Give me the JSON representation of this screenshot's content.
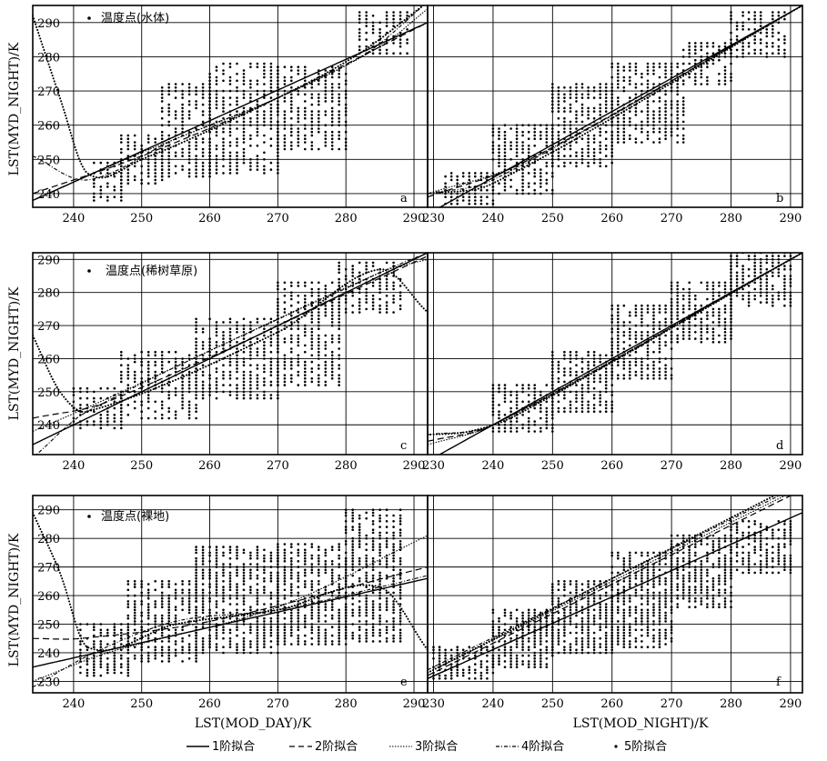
{
  "chart_data": [
    {
      "id": "a",
      "type": "scatter",
      "xlim": [
        234,
        292
      ],
      "ylim": [
        236,
        295
      ],
      "xticks": [
        240,
        250,
        260,
        270,
        280,
        290
      ],
      "yticks": [
        240,
        250,
        260,
        270,
        280,
        290
      ],
      "ylabel": "LST(MYD_NIGHT)/K",
      "point_label": "温度点(水体)",
      "bands": [
        {
          "x": [
            243,
            247
          ],
          "lo": 238,
          "hi": 249
        },
        {
          "x": [
            247,
            253
          ],
          "lo": 243,
          "hi": 257
        },
        {
          "x": [
            253,
            260
          ],
          "lo": 245,
          "hi": 272
        },
        {
          "x": [
            260,
            270
          ],
          "lo": 246,
          "hi": 278
        },
        {
          "x": [
            270,
            280
          ],
          "lo": 253,
          "hi": 277
        },
        {
          "x": [
            282,
            289
          ],
          "lo": 281,
          "hi": 293
        }
      ],
      "fits": {
        "fit1": [
          [
            234,
            238
          ],
          [
            292,
            290
          ]
        ],
        "fit2": [
          [
            234,
            240
          ],
          [
            250,
            251
          ],
          [
            270,
            268
          ],
          [
            292,
            290
          ]
        ],
        "fit3": [
          [
            234,
            238
          ],
          [
            250,
            252
          ],
          [
            270,
            268
          ],
          [
            285,
            283
          ],
          [
            292,
            294
          ]
        ],
        "fit4": [
          [
            234,
            251
          ],
          [
            242,
            244
          ],
          [
            255,
            256
          ],
          [
            270,
            268
          ],
          [
            283,
            281
          ],
          [
            292,
            296
          ]
        ],
        "fit5": [
          [
            234,
            292
          ],
          [
            238,
            268
          ],
          [
            242,
            246
          ],
          [
            250,
            250
          ],
          [
            270,
            268
          ],
          [
            282,
            281
          ],
          [
            292,
            296
          ]
        ]
      }
    },
    {
      "id": "b",
      "type": "scatter",
      "xlim": [
        229,
        292
      ],
      "ylim": [
        236,
        295
      ],
      "xticks": [
        230,
        240,
        250,
        260,
        270,
        280,
        290
      ],
      "yticks": [
        240,
        250,
        260,
        270,
        280,
        290
      ],
      "bands": [
        {
          "x": [
            232,
            240
          ],
          "lo": 237,
          "hi": 246
        },
        {
          "x": [
            240,
            250
          ],
          "lo": 240,
          "hi": 260
        },
        {
          "x": [
            250,
            260
          ],
          "lo": 248,
          "hi": 272
        },
        {
          "x": [
            260,
            272
          ],
          "lo": 255,
          "hi": 278
        },
        {
          "x": [
            272,
            280
          ],
          "lo": 272,
          "hi": 284
        },
        {
          "x": [
            280,
            289
          ],
          "lo": 280,
          "hi": 293
        }
      ],
      "fits": {
        "fit1": [
          [
            229,
            234
          ],
          [
            292,
            295
          ]
        ],
        "fit2": [
          [
            229,
            239
          ],
          [
            245,
            249
          ],
          [
            292,
            295
          ]
        ],
        "fit3": [
          [
            229,
            240
          ],
          [
            245,
            249
          ],
          [
            292,
            295
          ]
        ],
        "fit4": [
          [
            229,
            240
          ],
          [
            240,
            244
          ],
          [
            292,
            295
          ]
        ],
        "fit5": [
          [
            229,
            240
          ],
          [
            240,
            243
          ],
          [
            292,
            295
          ]
        ]
      }
    },
    {
      "id": "c",
      "type": "scatter",
      "xlim": [
        234,
        292
      ],
      "ylim": [
        231,
        292
      ],
      "xticks": [
        240,
        250,
        260,
        270,
        280,
        290
      ],
      "yticks": [
        240,
        250,
        260,
        270,
        280,
        290
      ],
      "ylabel": "LST(MYD_NIGHT)/K",
      "point_label": "温度点(稀树草原)",
      "bands": [
        {
          "x": [
            240,
            247
          ],
          "lo": 239,
          "hi": 251
        },
        {
          "x": [
            247,
            258
          ],
          "lo": 242,
          "hi": 262
        },
        {
          "x": [
            258,
            270
          ],
          "lo": 248,
          "hi": 272
        },
        {
          "x": [
            270,
            279
          ],
          "lo": 252,
          "hi": 283
        },
        {
          "x": [
            279,
            288
          ],
          "lo": 274,
          "hi": 289
        }
      ],
      "fits": {
        "fit1": [
          [
            234,
            234
          ],
          [
            292,
            292
          ]
        ],
        "fit2": [
          [
            234,
            242
          ],
          [
            245,
            247
          ],
          [
            292,
            291
          ]
        ],
        "fit3": [
          [
            234,
            238
          ],
          [
            245,
            248
          ],
          [
            285,
            286
          ],
          [
            292,
            290
          ]
        ],
        "fit4": [
          [
            234,
            230
          ],
          [
            242,
            244
          ],
          [
            285,
            286
          ],
          [
            292,
            292
          ]
        ],
        "fit5": [
          [
            234,
            267
          ],
          [
            238,
            250
          ],
          [
            242,
            244
          ],
          [
            270,
            268
          ],
          [
            285,
            287
          ],
          [
            292,
            274
          ]
        ]
      }
    },
    {
      "id": "d",
      "type": "scatter",
      "xlim": [
        229,
        292
      ],
      "ylim": [
        231,
        292
      ],
      "xticks": [
        230,
        240,
        250,
        260,
        270,
        280,
        290
      ],
      "yticks": [
        240,
        250,
        260,
        270,
        280,
        290
      ],
      "bands": [
        {
          "x": [
            240,
            250
          ],
          "lo": 238,
          "hi": 252
        },
        {
          "x": [
            250,
            260
          ],
          "lo": 244,
          "hi": 262
        },
        {
          "x": [
            260,
            270
          ],
          "lo": 254,
          "hi": 276
        },
        {
          "x": [
            270,
            280
          ],
          "lo": 265,
          "hi": 283
        },
        {
          "x": [
            280,
            290
          ],
          "lo": 276,
          "hi": 292
        }
      ],
      "fits": {
        "fit1": [
          [
            229,
            229
          ],
          [
            292,
            292
          ]
        ],
        "fit2": [
          [
            229,
            235
          ],
          [
            240,
            240
          ],
          [
            292,
            292
          ]
        ],
        "fit3": [
          [
            229,
            234
          ],
          [
            240,
            240
          ],
          [
            292,
            292
          ]
        ],
        "fit4": [
          [
            229,
            237
          ],
          [
            240,
            240
          ],
          [
            292,
            292
          ]
        ],
        "fit5": [
          [
            229,
            237
          ],
          [
            236,
            238
          ],
          [
            244,
            243
          ],
          [
            292,
            292
          ]
        ]
      }
    },
    {
      "id": "e",
      "type": "scatter",
      "xlim": [
        234,
        292
      ],
      "ylim": [
        226,
        295
      ],
      "xticks": [
        240,
        250,
        260,
        270,
        280,
        290
      ],
      "yticks": [
        230,
        240,
        250,
        260,
        270,
        280,
        290
      ],
      "xlabel": "LST(MOD_DAY)/K",
      "ylabel": "LST(MYD_NIGHT)/K",
      "point_label": "温度点(裸地)",
      "bands": [
        {
          "x": [
            241,
            248
          ],
          "lo": 232,
          "hi": 250
        },
        {
          "x": [
            248,
            258
          ],
          "lo": 237,
          "hi": 265
        },
        {
          "x": [
            258,
            270
          ],
          "lo": 240,
          "hi": 277
        },
        {
          "x": [
            270,
            280
          ],
          "lo": 243,
          "hi": 278
        },
        {
          "x": [
            280,
            288
          ],
          "lo": 244,
          "hi": 290
        }
      ],
      "fits": {
        "fit1": [
          [
            234,
            235
          ],
          [
            292,
            266
          ]
        ],
        "fit2": [
          [
            234,
            245
          ],
          [
            241,
            245
          ],
          [
            260,
            251
          ],
          [
            292,
            270
          ]
        ],
        "fit3": [
          [
            234,
            230
          ],
          [
            245,
            240
          ],
          [
            270,
            256
          ],
          [
            292,
            281
          ]
        ],
        "fit4": [
          [
            234,
            228
          ],
          [
            243,
            240
          ],
          [
            255,
            251
          ],
          [
            270,
            255
          ],
          [
            285,
            263
          ],
          [
            292,
            267
          ]
        ],
        "fit5": [
          [
            234,
            289
          ],
          [
            238,
            268
          ],
          [
            242,
            242
          ],
          [
            255,
            250
          ],
          [
            270,
            255
          ],
          [
            285,
            263
          ],
          [
            292,
            241
          ]
        ]
      }
    },
    {
      "id": "f",
      "type": "scatter",
      "xlim": [
        229,
        292
      ],
      "ylim": [
        226,
        295
      ],
      "xticks": [
        230,
        240,
        250,
        260,
        270,
        280,
        290
      ],
      "yticks": [
        230,
        240,
        250,
        260,
        270,
        280,
        290
      ],
      "xlabel": "LST(MOD_NIGHT)/K",
      "bands": [
        {
          "x": [
            230,
            240
          ],
          "lo": 231,
          "hi": 242
        },
        {
          "x": [
            240,
            250
          ],
          "lo": 235,
          "hi": 255
        },
        {
          "x": [
            250,
            260
          ],
          "lo": 240,
          "hi": 265
        },
        {
          "x": [
            260,
            270
          ],
          "lo": 242,
          "hi": 275
        },
        {
          "x": [
            270,
            280
          ],
          "lo": 256,
          "hi": 281
        },
        {
          "x": [
            280,
            290
          ],
          "lo": 268,
          "hi": 286
        }
      ],
      "fits": {
        "fit1": [
          [
            229,
            231
          ],
          [
            292,
            289
          ]
        ],
        "fit2": [
          [
            229,
            232
          ],
          [
            292,
            297
          ]
        ],
        "fit3": [
          [
            229,
            233
          ],
          [
            292,
            298
          ]
        ],
        "fit4": [
          [
            229,
            234
          ],
          [
            292,
            299
          ]
        ],
        "fit5": [
          [
            229,
            233
          ],
          [
            292,
            300
          ]
        ]
      }
    }
  ],
  "legend": [
    {
      "key": "fit1",
      "label": "1阶拟合"
    },
    {
      "key": "fit2",
      "label": "2阶拟合"
    },
    {
      "key": "fit3",
      "label": "3阶拟合"
    },
    {
      "key": "fit4",
      "label": "4阶拟合"
    },
    {
      "key": "fit5",
      "label": "5阶拟合"
    }
  ],
  "colors": {
    "ink": "#000000",
    "background": "#ffffff"
  }
}
